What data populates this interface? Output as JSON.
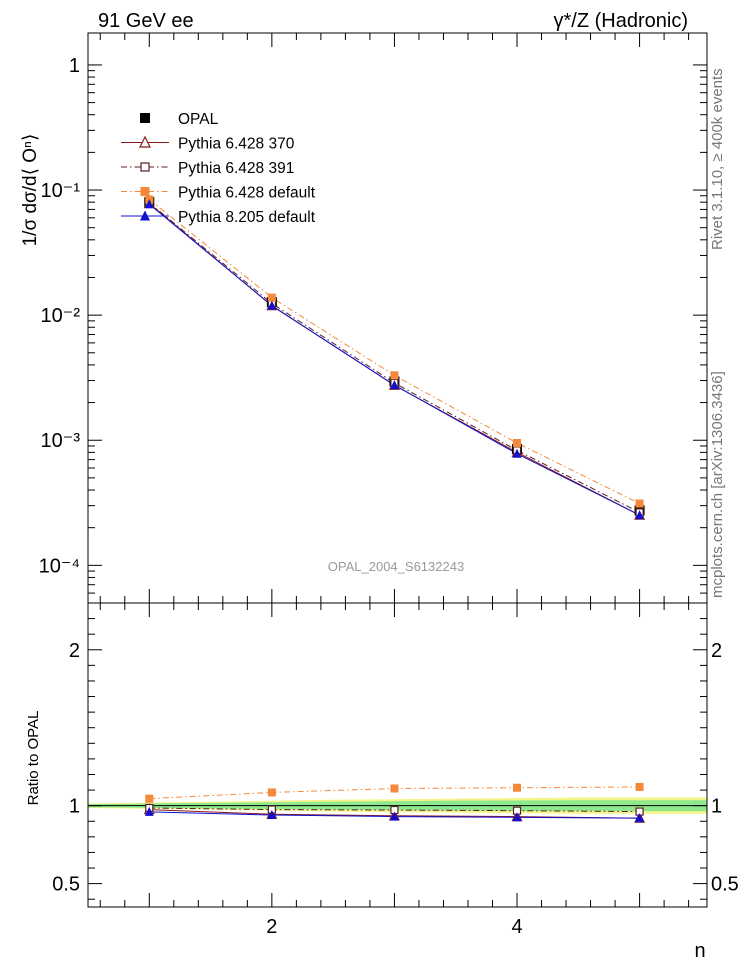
{
  "header": {
    "left": "91 GeV ee",
    "right": "γ*/Z (Hadronic)"
  },
  "side_text": {
    "rivet": "Rivet 3.1.10, ≥ 400k events",
    "mcplots": "mcplots.cern.ch [arXiv:1306.3436]"
  },
  "watermark": "OPAL_2004_S6132243",
  "chart_data": [
    {
      "type": "line",
      "scale": "log",
      "ylabel": "1/σ dσ/d⟨ Oⁿ⟩",
      "xlabel": "n",
      "xlim": [
        0.5,
        5.55
      ],
      "ylim": [
        5e-05,
        1.8
      ],
      "yticks": [
        {
          "value": 1,
          "label": "1"
        },
        {
          "value": 0.1,
          "label": "10⁻¹"
        },
        {
          "value": 0.01,
          "label": "10⁻²"
        },
        {
          "value": 0.001,
          "label": "10⁻³"
        },
        {
          "value": 0.0001,
          "label": "10⁻⁴"
        }
      ],
      "x": [
        1,
        2,
        3,
        4,
        5
      ],
      "series": [
        {
          "name": "OPAL",
          "marker": "square-filled",
          "color": "#000000",
          "line": "none",
          "values": [
            0.08,
            0.0127,
            0.00295,
            0.00085,
            0.000275
          ]
        },
        {
          "name": "Pythia 6.428 370",
          "marker": "triangle-open",
          "color": "#8b1a1a",
          "line": "solid",
          "values": [
            0.078,
            0.0119,
            0.00275,
            0.0008,
            0.000252
          ]
        },
        {
          "name": "Pythia 6.428 391",
          "marker": "square-open",
          "color": "#5a2020",
          "line": "dashdot",
          "values": [
            0.079,
            0.0124,
            0.00287,
            0.00083,
            0.000265
          ]
        },
        {
          "name": "Pythia 6.428 default",
          "marker": "square-filled",
          "color": "#f5883a",
          "line": "dashdot",
          "values": [
            0.084,
            0.0138,
            0.0033,
            0.00095,
            0.000312
          ]
        },
        {
          "name": "Pythia 8.205 default",
          "marker": "triangle-filled",
          "color": "#1010d0",
          "line": "solid",
          "values": [
            0.077,
            0.0119,
            0.00276,
            0.00078,
            0.000252
          ]
        }
      ]
    },
    {
      "type": "line",
      "ylabel": "Ratio to OPAL",
      "xlabel": "n",
      "xlim": [
        0.5,
        5.55
      ],
      "ylim": [
        0.35,
        2.3
      ],
      "yticks": [
        {
          "value": 2,
          "label": "2"
        },
        {
          "value": 1,
          "label": "1"
        },
        {
          "value": 0.5,
          "label": "0.5"
        }
      ],
      "xticks": [
        {
          "value": 2,
          "label": "2"
        },
        {
          "value": 4,
          "label": "4"
        }
      ],
      "bands": [
        {
          "name": "outer",
          "color": "#f4f48a",
          "x": [
            0.5,
            1.5,
            2.5,
            3.5,
            4.5,
            5.55
          ],
          "low": [
            0.985,
            0.975,
            0.962,
            0.955,
            0.948,
            0.948
          ],
          "high": [
            1.015,
            1.025,
            1.038,
            1.045,
            1.052,
            1.052
          ]
        },
        {
          "name": "inner",
          "color": "#8ee88e",
          "x": [
            0.5,
            1.5,
            2.5,
            3.5,
            4.5,
            5.55
          ],
          "low": [
            0.99,
            0.982,
            0.975,
            0.968,
            0.965,
            0.965
          ],
          "high": [
            1.01,
            1.018,
            1.025,
            1.032,
            1.035,
            1.035
          ]
        }
      ],
      "x": [
        1,
        2,
        3,
        4,
        5
      ],
      "series": [
        {
          "name": "Pythia 6.428 370",
          "marker": "triangle-open",
          "color": "#8b1a1a",
          "line": "solid",
          "values": [
            0.975,
            0.945,
            0.935,
            0.93,
            0.92
          ]
        },
        {
          "name": "Pythia 6.428 391",
          "marker": "square-open",
          "color": "#5a2020",
          "line": "dashdot",
          "values": [
            0.985,
            0.975,
            0.972,
            0.968,
            0.962
          ]
        },
        {
          "name": "Pythia 6.428 default",
          "marker": "square-filled",
          "color": "#f5883a",
          "line": "dashdot",
          "values": [
            1.045,
            1.085,
            1.11,
            1.115,
            1.12
          ]
        },
        {
          "name": "Pythia 8.205 default",
          "marker": "triangle-filled",
          "color": "#1010d0",
          "line": "solid",
          "values": [
            0.96,
            0.94,
            0.93,
            0.925,
            0.92
          ]
        }
      ]
    }
  ]
}
